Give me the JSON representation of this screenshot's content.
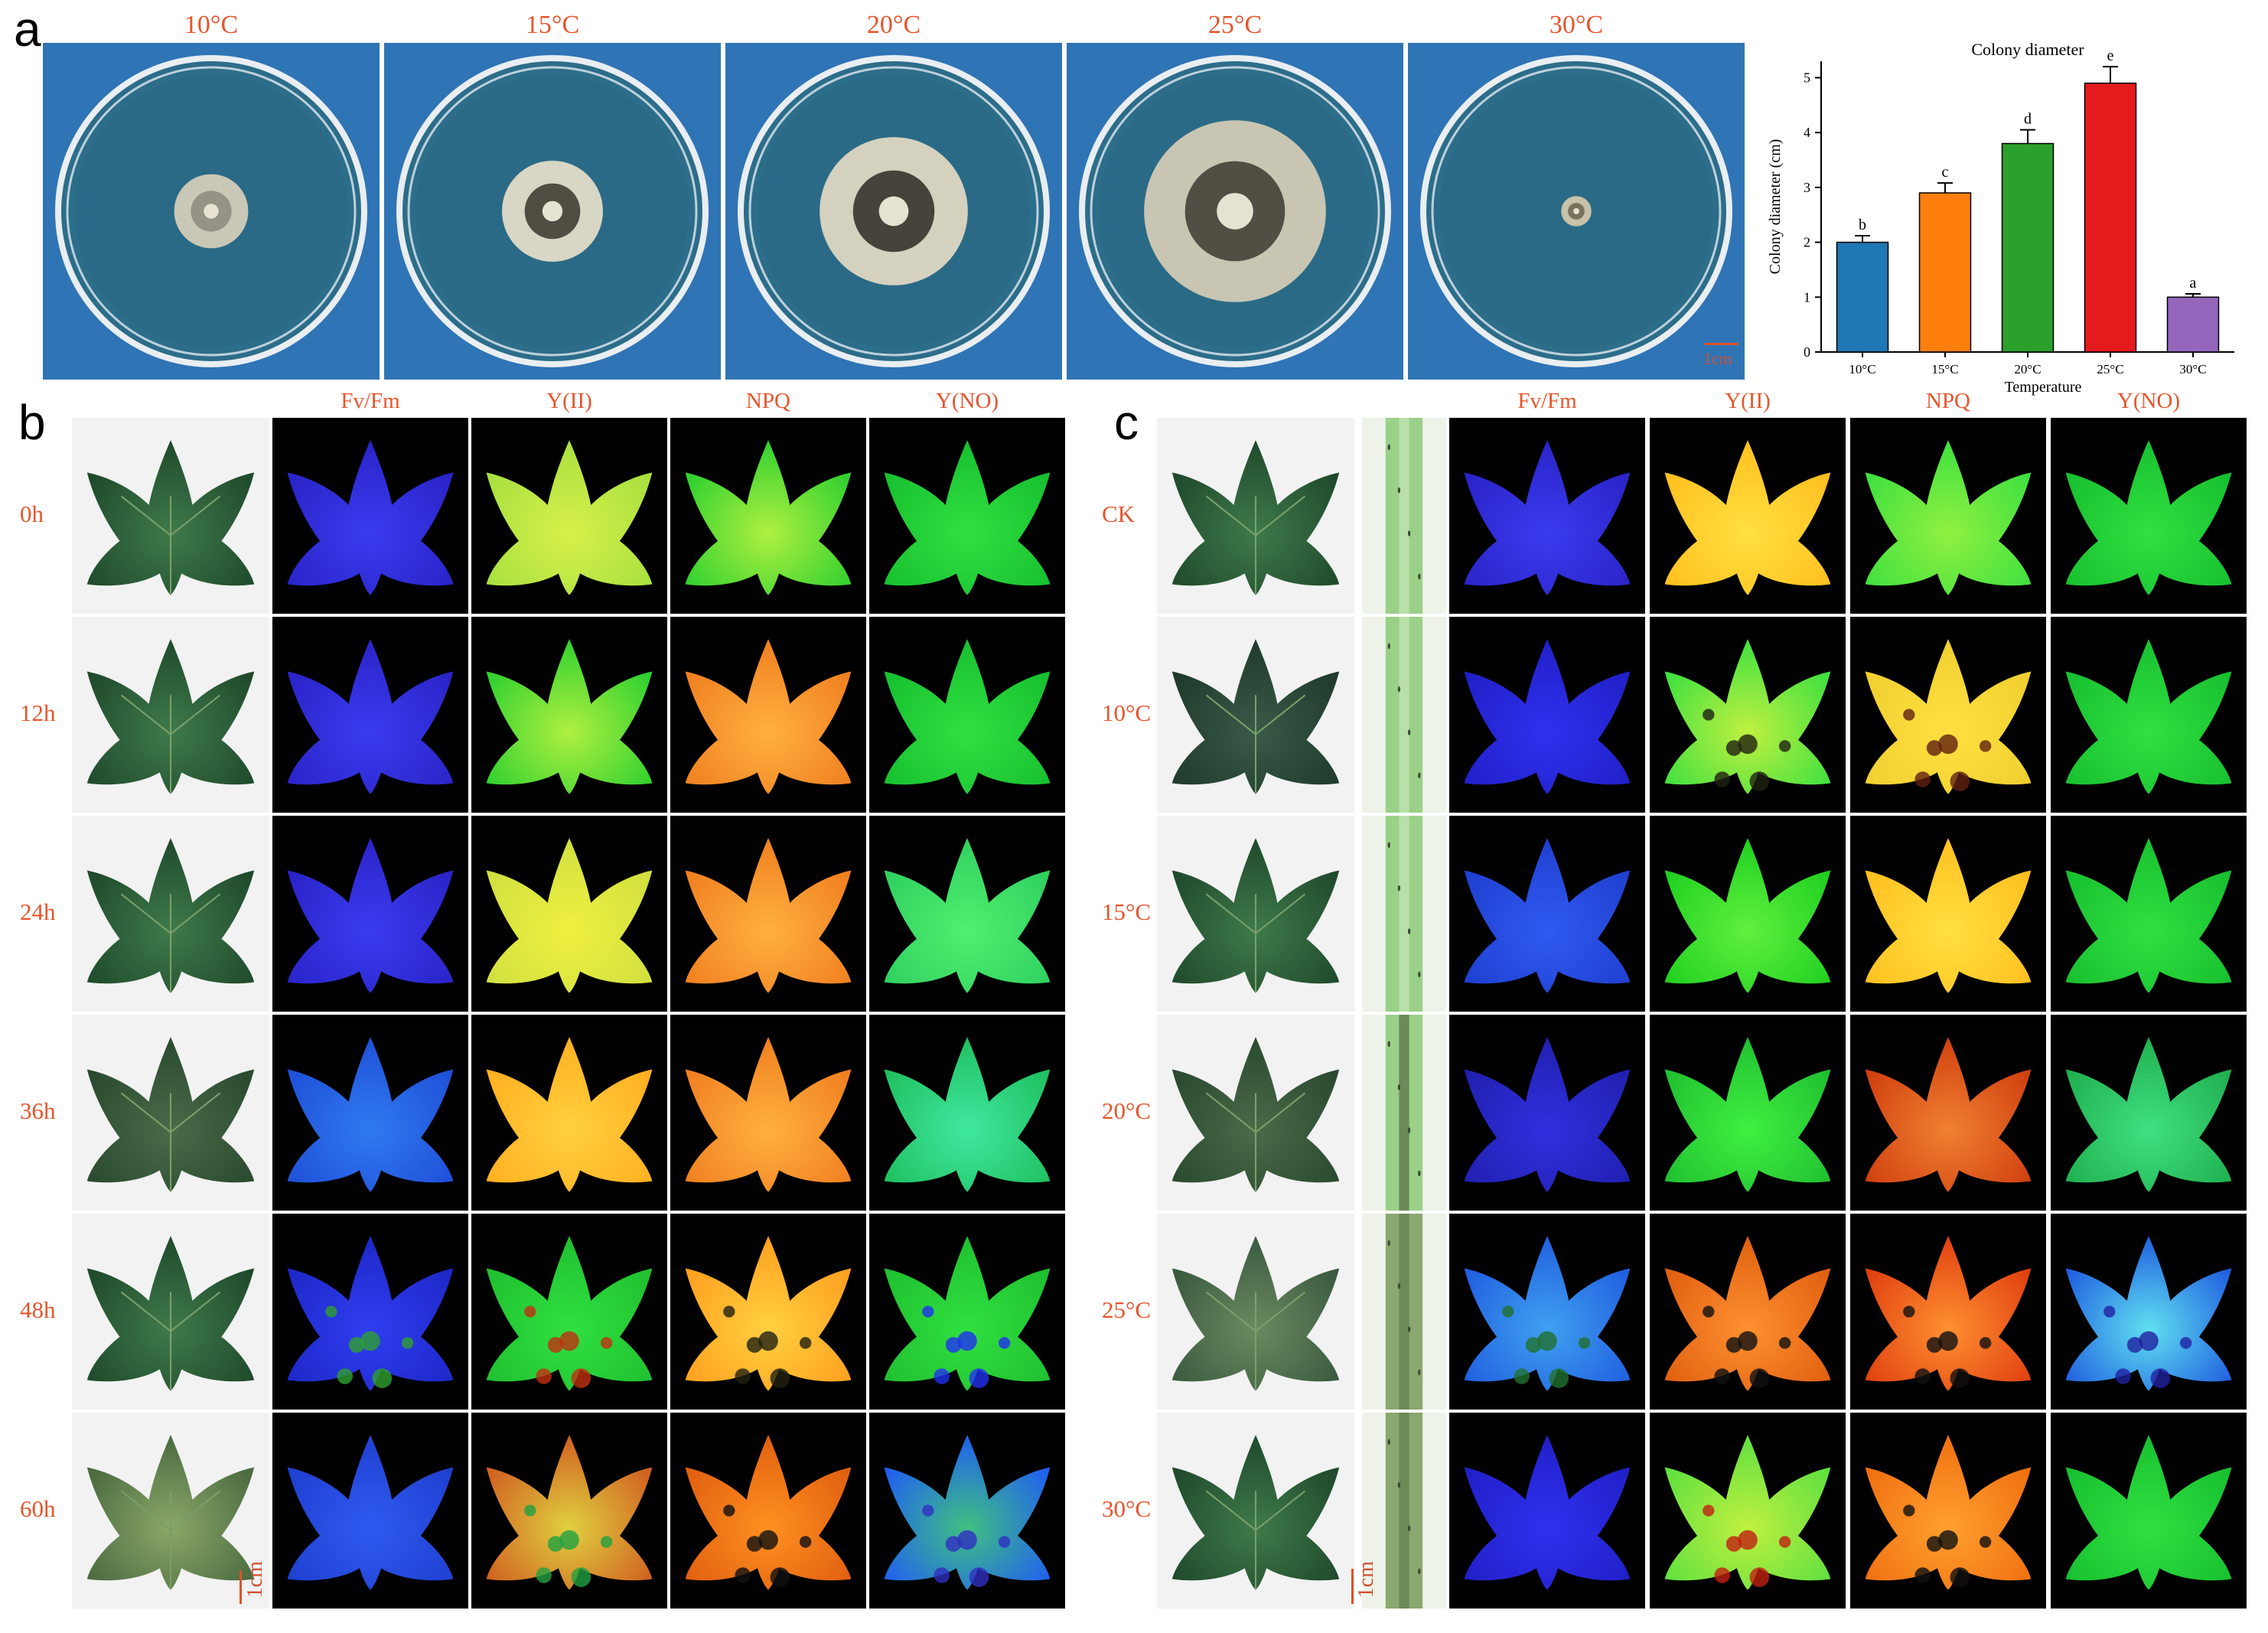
{
  "panels": {
    "a": "a",
    "b": "b",
    "c": "c"
  },
  "dish_temperatures": [
    "10°C",
    "15°C",
    "20°C",
    "25°C",
    "30°C"
  ],
  "dish_scale": "1cm",
  "leaf_scale": "1cm",
  "panel_b": {
    "columns": [
      "Fv/Fm",
      "Y(II)",
      "NPQ",
      "Y(NO)"
    ],
    "rows": [
      "0h",
      "12h",
      "24h",
      "36h",
      "48h",
      "60h"
    ]
  },
  "panel_c": {
    "columns": [
      "Fv/Fm",
      "Y(II)",
      "NPQ",
      "Y(NO)"
    ],
    "rows": [
      "CK",
      "10°C",
      "15°C",
      "20°C",
      "25°C",
      "30°C"
    ]
  },
  "colors": {
    "label_red": "#e8542b",
    "dish_blue": "#2f74b5",
    "bar_colors": [
      "#1f77b4",
      "#ff7f0e",
      "#2ca02c",
      "#e41a1c",
      "#9467bd"
    ]
  },
  "chart_data": {
    "type": "bar",
    "title": "Colony diameter",
    "xlabel": "Temperature",
    "ylabel": "Colony diameter (cm)",
    "categories": [
      "10°C",
      "15°C",
      "20°C",
      "25°C",
      "30°C"
    ],
    "values": [
      2.0,
      2.9,
      3.8,
      4.9,
      1.0
    ],
    "errors": [
      0.12,
      0.18,
      0.25,
      0.3,
      0.06
    ],
    "significance": [
      "b",
      "c",
      "d",
      "e",
      "a"
    ],
    "ylim": [
      0,
      5.3
    ],
    "yticks": [
      0,
      1,
      2,
      3,
      4,
      5
    ],
    "grid": false
  }
}
